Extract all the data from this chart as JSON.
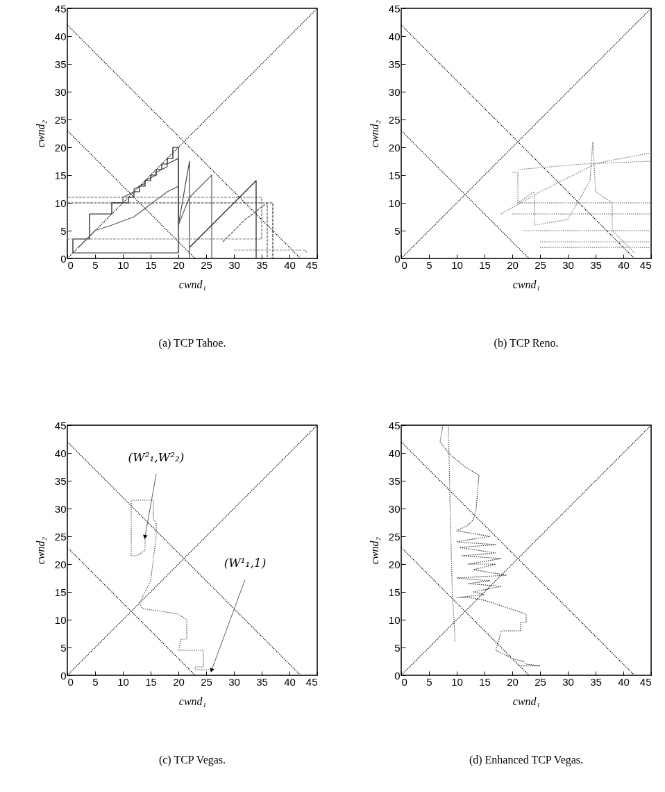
{
  "chart_data": [
    {
      "type": "line",
      "title": "(a) TCP Tahoe.",
      "xlabel": "cwnd₁",
      "ylabel": "cwnd₂",
      "xlim": [
        0,
        45
      ],
      "ylim": [
        0,
        45
      ],
      "xticks": [
        0,
        5,
        10,
        15,
        20,
        25,
        30,
        35,
        40,
        45
      ],
      "yticks": [
        0,
        5,
        10,
        15,
        20,
        25,
        30,
        35,
        40,
        45
      ],
      "series": [
        {
          "color": "#000000",
          "line_style": "dotted",
          "x": [
            0,
            45
          ],
          "values": [
            0,
            45
          ]
        },
        {
          "color": "#000000",
          "line_style": "dotted",
          "x": [
            0,
            42
          ],
          "values": [
            42,
            0
          ]
        },
        {
          "color": "#000000",
          "line_style": "dotted",
          "x": [
            0,
            23
          ],
          "values": [
            23,
            0
          ]
        },
        {
          "color": "#101010",
          "line_style": "solid",
          "x": [
            1,
            1,
            4,
            4,
            8,
            8,
            11,
            11,
            12,
            12,
            13,
            13,
            14,
            14,
            15,
            15,
            16,
            16,
            17,
            17,
            18,
            18,
            19,
            19,
            20,
            20
          ],
          "values": [
            1,
            3.5,
            3.5,
            8,
            8,
            10,
            10,
            11,
            11,
            12,
            12,
            13,
            13,
            14,
            14,
            15,
            15,
            16,
            16,
            17,
            17,
            18,
            18,
            20,
            20,
            1
          ]
        },
        {
          "color": "#2a2a2a",
          "line_style": "solid",
          "x": [
            1,
            20
          ],
          "values": [
            1,
            1
          ]
        },
        {
          "color": "#444444",
          "line_style": "solid",
          "x": [
            8,
            10,
            10,
            12,
            12,
            14,
            14,
            16,
            16,
            18,
            18,
            20,
            20,
            22,
            22
          ],
          "values": [
            10,
            10,
            11,
            12,
            12.5,
            13.5,
            14,
            15,
            15.5,
            16.5,
            17,
            18,
            6,
            17.5,
            0
          ]
        },
        {
          "color": "#5a5a5a",
          "line_style": "solid",
          "x": [
            2,
            5,
            8,
            12,
            14,
            16,
            18,
            20,
            20,
            22,
            24,
            26,
            26
          ],
          "values": [
            2,
            5,
            6,
            7.5,
            9,
            10.5,
            12,
            13,
            6,
            11,
            13,
            15,
            0
          ]
        },
        {
          "color": "#707070",
          "line_style": "dashed",
          "x": [
            0,
            0,
            35,
            35
          ],
          "values": [
            3.5,
            11,
            11,
            3.5
          ]
        },
        {
          "color": "#808080",
          "line_style": "dashed",
          "x": [
            0,
            35
          ],
          "values": [
            3.5,
            3.5
          ]
        },
        {
          "color": "#333333",
          "line_style": "dashed",
          "x": [
            0,
            37,
            37
          ],
          "values": [
            10,
            10,
            0
          ]
        },
        {
          "color": "#1e1e1e",
          "line_style": "solid",
          "x": [
            22,
            24,
            26,
            28,
            30,
            32,
            34,
            34
          ],
          "values": [
            2,
            4,
            6,
            8,
            10,
            12,
            14,
            0
          ]
        },
        {
          "color": "#505050",
          "line_style": "dashed",
          "x": [
            28,
            32,
            36,
            36
          ],
          "values": [
            3,
            7,
            10,
            0
          ]
        },
        {
          "color": "#909090",
          "line_style": "dashed",
          "x": [
            30,
            43,
            43
          ],
          "values": [
            1.5,
            1.5,
            1
          ]
        }
      ]
    },
    {
      "type": "line",
      "title": "(b) TCP Reno.",
      "xlabel": "cwnd₁",
      "ylabel": "cwnd₂",
      "xlim": [
        0,
        45
      ],
      "ylim": [
        0,
        45
      ],
      "xticks": [
        0,
        5,
        10,
        15,
        20,
        25,
        30,
        35,
        40,
        45
      ],
      "yticks": [
        0,
        5,
        10,
        15,
        20,
        25,
        30,
        35,
        40,
        45
      ],
      "series": [
        {
          "color": "#000000",
          "line_style": "dotted",
          "x": [
            0,
            45
          ],
          "values": [
            0,
            45
          ]
        },
        {
          "color": "#000000",
          "line_style": "dotted",
          "x": [
            0,
            42
          ],
          "values": [
            42,
            0
          ]
        },
        {
          "color": "#000000",
          "line_style": "dotted",
          "x": [
            0,
            23
          ],
          "values": [
            23,
            0
          ]
        },
        {
          "color": "#555555",
          "line_style": "dotted",
          "x": [
            21,
            45
          ],
          "values": [
            10,
            10
          ]
        },
        {
          "color": "#5c5c5c",
          "line_style": "dotted",
          "x": [
            20,
            45
          ],
          "values": [
            8,
            8
          ]
        },
        {
          "color": "#626262",
          "line_style": "dotted",
          "x": [
            22,
            45
          ],
          "values": [
            5,
            5
          ]
        },
        {
          "color": "#686868",
          "line_style": "dotted",
          "x": [
            25,
            45
          ],
          "values": [
            3,
            3
          ]
        },
        {
          "color": "#4e4e4e",
          "line_style": "dotted",
          "x": [
            25,
            45
          ],
          "values": [
            2,
            2
          ]
        },
        {
          "color": "#777777",
          "line_style": "dotted",
          "x": [
            18,
            25,
            35,
            37,
            45
          ],
          "values": [
            8,
            12,
            17,
            17.5,
            19
          ]
        },
        {
          "color": "#7d7d7d",
          "line_style": "dotted",
          "x": [
            21,
            33,
            45
          ],
          "values": [
            16,
            17,
            17.5
          ]
        },
        {
          "color": "#707070",
          "line_style": "dotted",
          "x": [
            20,
            21,
            21,
            24,
            24,
            30,
            34,
            34.5,
            35,
            38,
            38,
            42
          ],
          "values": [
            15.5,
            15.5,
            10,
            12,
            6,
            7,
            14,
            21,
            12,
            10,
            5,
            1
          ]
        }
      ]
    },
    {
      "type": "line",
      "title": "(c) TCP Vegas.",
      "xlabel": "cwnd₁",
      "ylabel": "cwnd₂",
      "xlim": [
        0,
        45
      ],
      "ylim": [
        0,
        45
      ],
      "xticks": [
        0,
        5,
        10,
        15,
        20,
        25,
        30,
        35,
        40,
        45
      ],
      "yticks": [
        0,
        5,
        10,
        15,
        20,
        25,
        30,
        35,
        40,
        45
      ],
      "annotations": [
        {
          "text": "(W²₁,W²₂)",
          "x": 14,
          "y": 25
        },
        {
          "text": "(W¹₁,1)",
          "x": 26,
          "y": 1
        }
      ],
      "series": [
        {
          "color": "#000000",
          "line_style": "dotted",
          "x": [
            0,
            45
          ],
          "values": [
            0,
            45
          ]
        },
        {
          "color": "#000000",
          "line_style": "dotted",
          "x": [
            0,
            42
          ],
          "values": [
            42,
            0
          ]
        },
        {
          "color": "#000000",
          "line_style": "dotted",
          "x": [
            0,
            23
          ],
          "values": [
            23,
            0
          ]
        },
        {
          "color": "#555555",
          "line_style": "dotted",
          "x": [
            14,
            14,
            12.5,
            11.5,
            11.5,
            15.5,
            15.5,
            16,
            16,
            15,
            13.5,
            13,
            13.5,
            17,
            20,
            21.5,
            21.5,
            20.5,
            20,
            24.5,
            24.5,
            23,
            23,
            26
          ],
          "values": [
            25,
            22.5,
            21.5,
            21.5,
            31.5,
            31.5,
            28,
            27.5,
            25,
            17,
            14,
            13,
            12,
            11.5,
            11,
            10,
            6.5,
            6.5,
            4.5,
            4.5,
            1.5,
            1.5,
            1,
            1
          ]
        }
      ]
    },
    {
      "type": "line",
      "title": "(d) Enhanced TCP Vegas.",
      "xlabel": "cwnd₁",
      "ylabel": "cwnd₂",
      "xlim": [
        0,
        45
      ],
      "ylim": [
        0,
        45
      ],
      "xticks": [
        0,
        5,
        10,
        15,
        20,
        25,
        30,
        35,
        40,
        45
      ],
      "yticks": [
        0,
        5,
        10,
        15,
        20,
        25,
        30,
        35,
        40,
        45
      ],
      "series": [
        {
          "color": "#000000",
          "line_style": "dotted",
          "x": [
            0,
            45
          ],
          "values": [
            0,
            45
          ]
        },
        {
          "color": "#000000",
          "line_style": "dotted",
          "x": [
            0,
            42
          ],
          "values": [
            42,
            0
          ]
        },
        {
          "color": "#000000",
          "line_style": "dotted",
          "x": [
            0,
            23
          ],
          "values": [
            23,
            0
          ]
        },
        {
          "color": "#555555",
          "line_style": "dotted",
          "x": [
            8.5,
            8.8,
            9.2,
            9.6,
            9.7
          ],
          "values": [
            45,
            30,
            15,
            8,
            6
          ]
        },
        {
          "color": "#333333",
          "line_style": "dotted",
          "x": [
            7.5,
            7,
            8.5,
            11.5,
            14,
            13.5,
            13,
            12,
            10,
            16,
            10,
            17,
            10.5,
            17,
            11,
            18,
            12,
            17,
            13,
            19,
            10,
            16,
            12,
            18,
            13,
            15,
            10,
            12,
            15,
            18,
            22.5,
            22.5,
            21.5,
            21.5,
            18,
            17.5,
            17,
            20,
            22,
            22.5,
            25,
            21
          ],
          "values": [
            45,
            42,
            40,
            37.5,
            36,
            30,
            28,
            27,
            26,
            25,
            24,
            23.5,
            23,
            22,
            21.5,
            21,
            20,
            20,
            19,
            18,
            17.5,
            17,
            16.5,
            16,
            15,
            14.5,
            14,
            14,
            13.5,
            12.5,
            11,
            9.5,
            9.5,
            8,
            8,
            6,
            4.5,
            3,
            2.5,
            2,
            1.7,
            1.7
          ]
        }
      ]
    }
  ]
}
